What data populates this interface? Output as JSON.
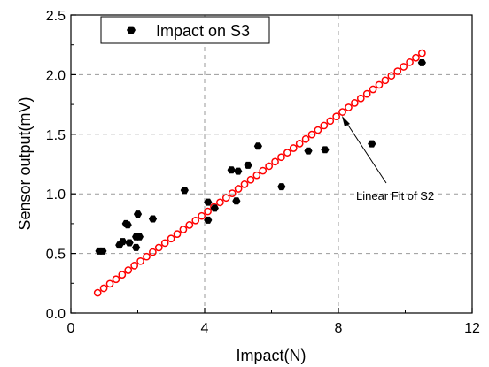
{
  "chart_data": {
    "type": "scatter",
    "xlabel": "Impact(N)",
    "ylabel": "Sensor output(mV)",
    "xlim": [
      0,
      12
    ],
    "ylim": [
      0,
      2.5
    ],
    "xticks": [
      0,
      4,
      8,
      12
    ],
    "yticks": [
      0.0,
      0.5,
      1.0,
      1.5,
      2.0,
      2.5
    ],
    "xtick_labels": [
      "0",
      "4",
      "8",
      "12"
    ],
    "ytick_labels": [
      "0.0",
      "0.5",
      "1.0",
      "1.5",
      "2.0",
      "2.5"
    ],
    "grid": true,
    "legend_position": "top-left",
    "series": [
      {
        "name": "Impact on S3",
        "marker": "hexagon-filled",
        "color": "#000000",
        "x": [
          0.85,
          0.95,
          1.45,
          1.55,
          1.65,
          1.7,
          1.75,
          1.95,
          1.95,
          2.0,
          2.05,
          2.45,
          3.4,
          4.1,
          4.1,
          4.3,
          4.8,
          4.95,
          5.0,
          5.3,
          5.6,
          6.3,
          7.1,
          7.6,
          9.0,
          10.5
        ],
        "y": [
          0.52,
          0.52,
          0.57,
          0.6,
          0.75,
          0.74,
          0.59,
          0.55,
          0.64,
          0.83,
          0.64,
          0.79,
          1.03,
          0.93,
          0.78,
          0.88,
          1.2,
          0.94,
          1.19,
          1.24,
          1.4,
          1.06,
          1.36,
          1.37,
          1.42,
          2.1
        ]
      },
      {
        "name": "Linear Fit of S2",
        "marker": "circle-open",
        "color": "#ff0000",
        "x_start": 0.8,
        "x_end": 10.5,
        "y_start": 0.17,
        "y_end": 2.18,
        "point_count": 54
      }
    ],
    "annotations": [
      {
        "text": "Linear Fit of S2",
        "target_x": 8.05,
        "target_y": 1.65
      }
    ]
  }
}
